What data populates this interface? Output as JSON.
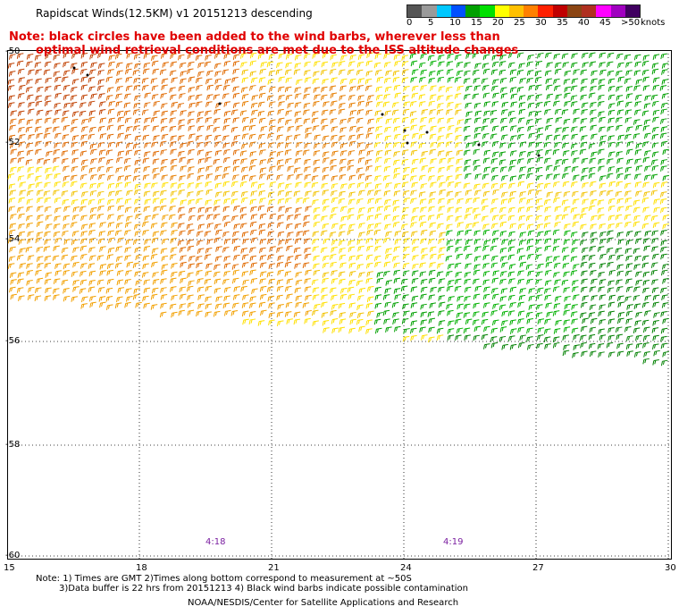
{
  "header": {
    "title": "Rapidscat Winds(12.5KM) v1 20151213 descending",
    "note_line1": "Note: black circles have been added to the wind barbs, wherever less than",
    "note_line2": "optimal wind retrieval conditions are met due to the ISS altitude changes"
  },
  "legend": {
    "unit": "knots",
    "labels": [
      "0",
      "5",
      "10",
      "15",
      "20",
      "25",
      "30",
      "35",
      "40",
      "45",
      ">50"
    ],
    "colors": [
      "#555555",
      "#9a9a9a",
      "#00c8ff",
      "#0050ff",
      "#00a000",
      "#00e000",
      "#ffff00",
      "#ffc000",
      "#ff8000",
      "#ff2000",
      "#c00000",
      "#8b4513",
      "#b03020",
      "#ff00ff",
      "#a000c0",
      "#400060"
    ]
  },
  "map": {
    "lat_labels": [
      "-50",
      "-52",
      "-54",
      "-56",
      "-58",
      "-60"
    ],
    "lon_labels": [
      "15",
      "18",
      "21",
      "24",
      "27",
      "30"
    ],
    "times": [
      "4:18",
      "4:19"
    ]
  },
  "footer": {
    "notes_line1": "Note: 1) Times are GMT 2)Times along bottom correspond to measurement at ~50S",
    "notes_line2": "3)Data buffer is 22 hrs from 20151213 4) Black wind barbs indicate possible contamination",
    "credit": "NOAA/NESDIS/Center for Satellite Applications and Research"
  }
}
